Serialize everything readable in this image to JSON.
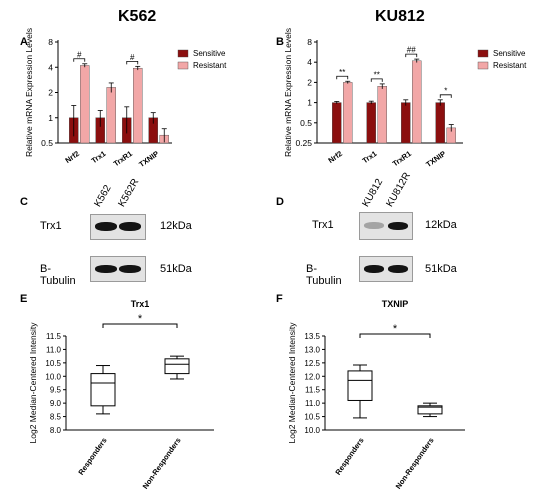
{
  "headers": {
    "left": "K562",
    "right": "KU812"
  },
  "panel_letters": {
    "A": "A",
    "B": "B",
    "C": "C",
    "D": "D",
    "E": "E",
    "F": "F"
  },
  "colors": {
    "sensitive": "#8b0f0f",
    "resistant": "#f2a7a7"
  },
  "blot_C": {
    "lanes": [
      "K562",
      "K562R"
    ],
    "rows": [
      {
        "label": "Trx1",
        "kda": "12kDa",
        "intensity": [
          1.0,
          1.0
        ]
      },
      {
        "label": "B-Tubulin",
        "kda": "51kDa",
        "intensity": [
          1.0,
          1.0
        ]
      }
    ]
  },
  "blot_D": {
    "lanes": [
      "KU812",
      "KU812R"
    ],
    "rows": [
      {
        "label": "Trx1",
        "kda": "12kDa",
        "intensity": [
          0.35,
          1.0
        ]
      },
      {
        "label": "B-Tubulin",
        "kda": "51kDa",
        "intensity": [
          1.0,
          1.0
        ]
      }
    ]
  },
  "chart_data": [
    {
      "panel": "A",
      "type": "bar",
      "ylabel": "Relative mRNA Expression Levels",
      "yscale": "log2",
      "ylim": [
        0.5,
        8
      ],
      "yticks": [
        0.5,
        1,
        2,
        4,
        8
      ],
      "ytick_labels": [
        "0.5",
        "1",
        "2",
        "4",
        "8"
      ],
      "categories": [
        "Nrf2",
        "Trx1",
        "TrxR1",
        "TXNIP"
      ],
      "series": [
        {
          "name": "Sensitive",
          "values": [
            1.0,
            1.0,
            1.0,
            1.0
          ],
          "err": [
            0.4,
            0.22,
            0.35,
            0.15
          ]
        },
        {
          "name": "Resistant",
          "values": [
            4.2,
            2.3,
            3.9,
            0.62
          ],
          "err": [
            0.2,
            0.3,
            0.2,
            0.12
          ]
        }
      ],
      "legend_position": "top-right",
      "significance": [
        {
          "category": 0,
          "label": "#"
        },
        {
          "category": 2,
          "label": "#"
        }
      ]
    },
    {
      "panel": "B",
      "type": "bar",
      "ylabel": "Relative mRNA Expression Levels",
      "yscale": "log2",
      "ylim": [
        0.25,
        8
      ],
      "yticks": [
        0.25,
        0.5,
        1,
        2,
        4,
        8
      ],
      "ytick_labels": [
        "0.25",
        "0.5",
        "1",
        "2",
        "4",
        "8"
      ],
      "categories": [
        "Nrf2",
        "Trx1",
        "TrxR1",
        "TXNIP"
      ],
      "series": [
        {
          "name": "Sensitive",
          "values": [
            1.0,
            1.0,
            1.0,
            1.0
          ],
          "err": [
            0.04,
            0.05,
            0.1,
            0.1
          ]
        },
        {
          "name": "Resistant",
          "values": [
            2.0,
            1.75,
            4.2,
            0.42
          ],
          "err": [
            0.08,
            0.15,
            0.25,
            0.05
          ]
        }
      ],
      "legend_position": "top-right",
      "significance": [
        {
          "category": 0,
          "label": "**"
        },
        {
          "category": 1,
          "label": "**"
        },
        {
          "category": 2,
          "label": "##"
        },
        {
          "category": 3,
          "label": "*"
        }
      ]
    },
    {
      "panel": "E",
      "type": "box",
      "title": "Trx1",
      "ylabel": "Log2 Median-Centered Intensity",
      "ylim": [
        8.0,
        11.5
      ],
      "yticks": [
        8.0,
        8.5,
        9.0,
        9.5,
        10.0,
        10.5,
        11.0,
        11.5
      ],
      "ytick_labels": [
        "8.0",
        "8.5",
        "9.0",
        "9.5",
        "10.0",
        "10.5",
        "11.0",
        "11.5"
      ],
      "categories": [
        "Responders",
        "Non-Responders"
      ],
      "boxes": [
        {
          "min": 8.6,
          "q1": 8.9,
          "median": 9.75,
          "q3": 10.1,
          "max": 10.4
        },
        {
          "min": 9.9,
          "q1": 10.1,
          "median": 10.45,
          "q3": 10.65,
          "max": 10.75
        }
      ],
      "significance": "*"
    },
    {
      "panel": "F",
      "type": "box",
      "title": "TXNIP",
      "ylabel": "Log2 Median-Centered Intensity",
      "ylim": [
        10.0,
        13.5
      ],
      "yticks": [
        10.0,
        10.5,
        11.0,
        11.5,
        12.0,
        12.5,
        13.0,
        13.5
      ],
      "ytick_labels": [
        "10.0",
        "10.5",
        "11.0",
        "11.5",
        "12.0",
        "12.5",
        "13.0",
        "13.5"
      ],
      "categories": [
        "Responders",
        "Non-Responders"
      ],
      "boxes": [
        {
          "min": 10.45,
          "q1": 11.1,
          "median": 11.85,
          "q3": 12.2,
          "max": 12.42
        },
        {
          "min": 10.5,
          "q1": 10.6,
          "median": 10.85,
          "q3": 10.9,
          "max": 11.0
        }
      ],
      "significance": "*"
    }
  ]
}
